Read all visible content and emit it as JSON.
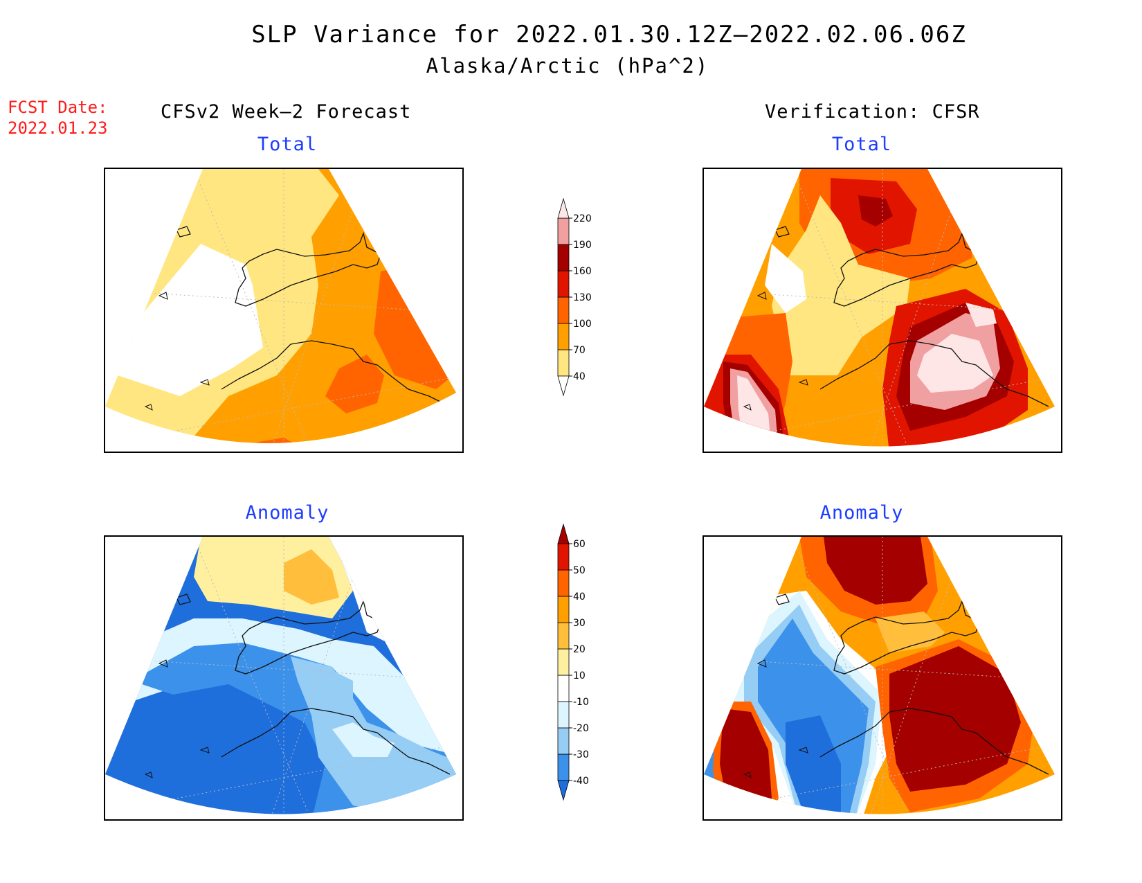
{
  "header": {
    "title_line1": "SLP Variance for 2022.01.30.12Z–2022.02.06.06Z",
    "title_line2": "Alaska/Arctic (hPa^2)",
    "fcst_label_line1": "FCST Date:",
    "fcst_label_line2": "2022.01.23"
  },
  "columns": {
    "left_heading": "CFSv2 Week–2 Forecast",
    "right_heading": "Verification: CFSR"
  },
  "panels": {
    "forecast_total_title": "Total",
    "verification_total_title": "Total",
    "forecast_anomaly_title": "Anomaly",
    "verification_anomaly_title": "Anomaly"
  },
  "colorbars": {
    "total": {
      "labels": [
        "40",
        "70",
        "100",
        "130",
        "160",
        "190",
        "220"
      ],
      "colors": [
        "#ffffff",
        "#ffe680",
        "#ffa000",
        "#ff6400",
        "#e11400",
        "#a50000",
        "#f0a0a0",
        "#ffe6e6"
      ]
    },
    "anomaly": {
      "labels": [
        "-40",
        "-30",
        "-20",
        "-10",
        "10",
        "20",
        "30",
        "40",
        "50",
        "60"
      ],
      "colors": [
        "#1e6edc",
        "#3c91eb",
        "#96cdf5",
        "#dcf5ff",
        "#ffffff",
        "#fff0a0",
        "#ffbe3c",
        "#ffa000",
        "#ff6400",
        "#e11400",
        "#a50000"
      ]
    }
  },
  "colors": {
    "title_text": "#000000",
    "fcst_label": "#ff1a1a",
    "panel_title": "#1c3cff"
  }
}
